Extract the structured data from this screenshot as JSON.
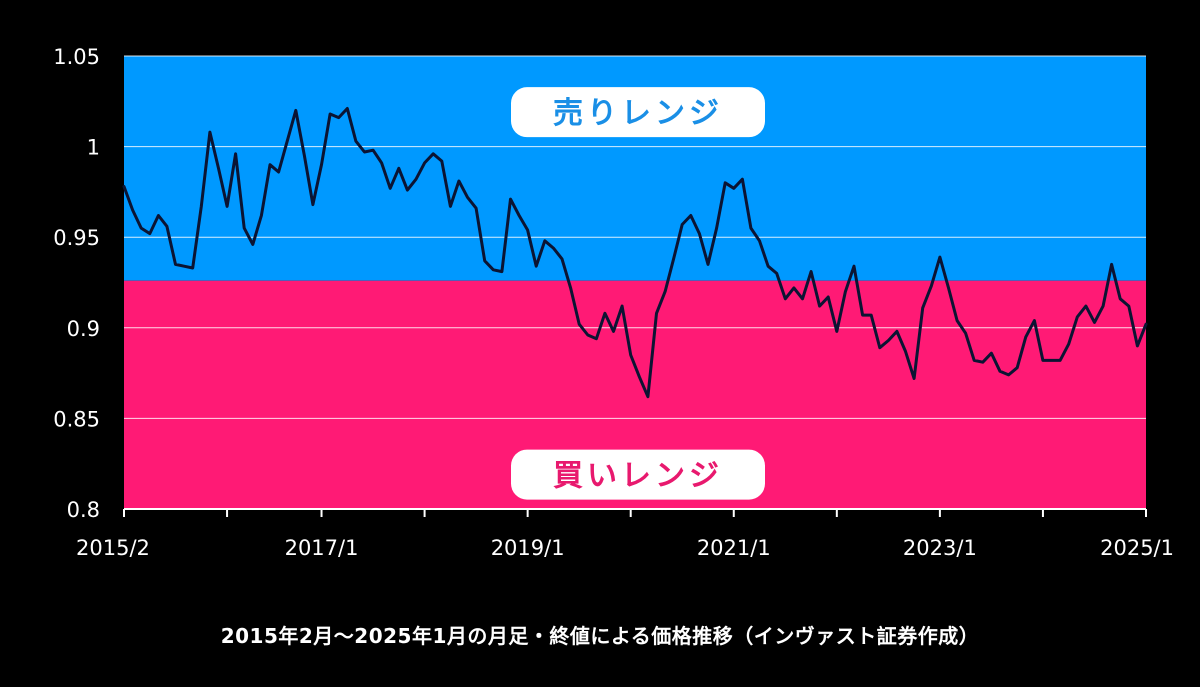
{
  "caption": "2015年2月～2025年1月の月足・終値による価格推移（インヴァスト証券作成）",
  "colors": {
    "background": "#000000",
    "sell_zone": "#0099ff",
    "buy_zone": "#ff1a75",
    "line": "#0b1433",
    "grid": "#ffffff",
    "sell_text": "#1a8fe6",
    "buy_text": "#e8196e"
  },
  "chart_data": {
    "type": "line",
    "title": "",
    "xlabel": "",
    "ylabel": "",
    "ylim": [
      0.8,
      1.05
    ],
    "yticks": [
      {
        "value": 1.05,
        "label": "1.05"
      },
      {
        "value": 1.0,
        "label": "1"
      },
      {
        "value": 0.95,
        "label": "0.95"
      },
      {
        "value": 0.9,
        "label": "0.9"
      },
      {
        "value": 0.85,
        "label": "0.85"
      },
      {
        "value": 0.8,
        "label": "0.8"
      }
    ],
    "xticks": [
      {
        "index": 0,
        "label": "2015/2"
      },
      {
        "index": 23,
        "label": "2017/1"
      },
      {
        "index": 47,
        "label": "2019/1"
      },
      {
        "index": 71,
        "label": "2021/1"
      },
      {
        "index": 95,
        "label": "2023/1"
      },
      {
        "index": 119,
        "label": "2025/1"
      }
    ],
    "minor_ticks": [
      0,
      12,
      23,
      35,
      47,
      59,
      71,
      83,
      95,
      107,
      119
    ],
    "zones": [
      {
        "label": "売りレンジ",
        "from": 0.926,
        "to": 1.05,
        "label_value": 1.019
      },
      {
        "label": "買いレンジ",
        "from": 0.8,
        "to": 0.926,
        "label_value": 0.819
      }
    ],
    "grid": true,
    "series": [
      {
        "name": "",
        "values": [
          0.978,
          0.965,
          0.955,
          0.952,
          0.962,
          0.956,
          0.935,
          0.934,
          0.933,
          0.967,
          1.008,
          0.988,
          0.967,
          0.996,
          0.955,
          0.946,
          0.962,
          0.99,
          0.986,
          1.003,
          1.02,
          0.995,
          0.968,
          0.99,
          1.018,
          1.016,
          1.021,
          1.003,
          0.997,
          0.998,
          0.991,
          0.977,
          0.988,
          0.976,
          0.982,
          0.991,
          0.996,
          0.992,
          0.967,
          0.981,
          0.972,
          0.966,
          0.937,
          0.932,
          0.931,
          0.971,
          0.962,
          0.954,
          0.934,
          0.948,
          0.944,
          0.938,
          0.922,
          0.902,
          0.896,
          0.894,
          0.908,
          0.898,
          0.912,
          0.885,
          0.873,
          0.862,
          0.908,
          0.92,
          0.938,
          0.957,
          0.962,
          0.952,
          0.935,
          0.955,
          0.98,
          0.977,
          0.982,
          0.955,
          0.948,
          0.934,
          0.93,
          0.916,
          0.922,
          0.916,
          0.931,
          0.912,
          0.917,
          0.898,
          0.92,
          0.934,
          0.907,
          0.907,
          0.889,
          0.893,
          0.898,
          0.887,
          0.872,
          0.911,
          0.923,
          0.939,
          0.922,
          0.904,
          0.897,
          0.882,
          0.881,
          0.886,
          0.876,
          0.874,
          0.878,
          0.895,
          0.904,
          0.882,
          0.882,
          0.882,
          0.891,
          0.906,
          0.912,
          0.903,
          0.912,
          0.935,
          0.916,
          0.912,
          0.89,
          0.902
        ]
      }
    ]
  }
}
